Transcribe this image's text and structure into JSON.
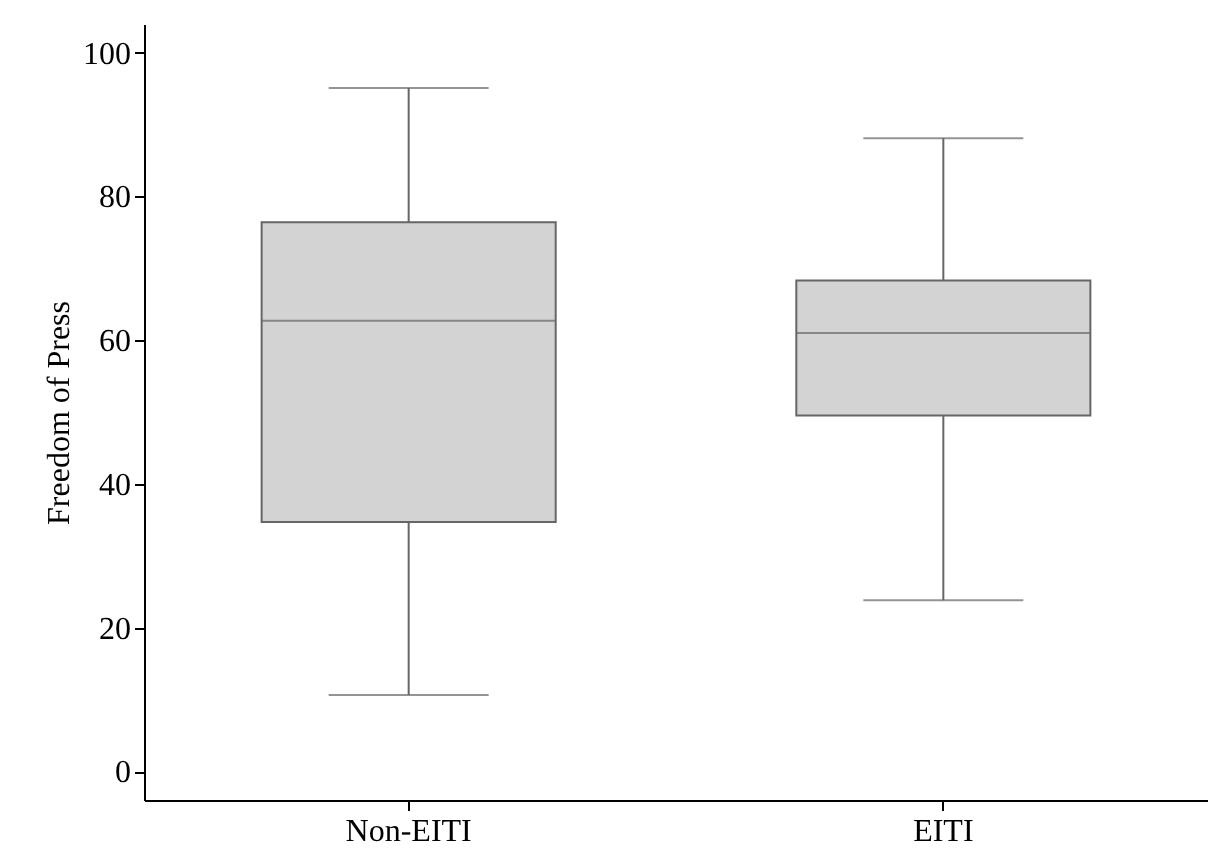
{
  "chart_data": {
    "type": "box",
    "ylabel": "Freedom of Press",
    "categories": [
      "Non-EITI",
      "EITI"
    ],
    "boxes": [
      {
        "low": 10.6,
        "q1": 34.7,
        "median": 62.7,
        "q3": 76.4,
        "high": 95.1
      },
      {
        "low": 23.8,
        "q1": 49.5,
        "median": 61,
        "q3": 68.3,
        "high": 88.1
      }
    ],
    "color": "#d3d3d3",
    "ylim": [
      -4,
      104
    ],
    "yticks": [
      0,
      20,
      40,
      60,
      80,
      100
    ],
    "grid": false
  }
}
